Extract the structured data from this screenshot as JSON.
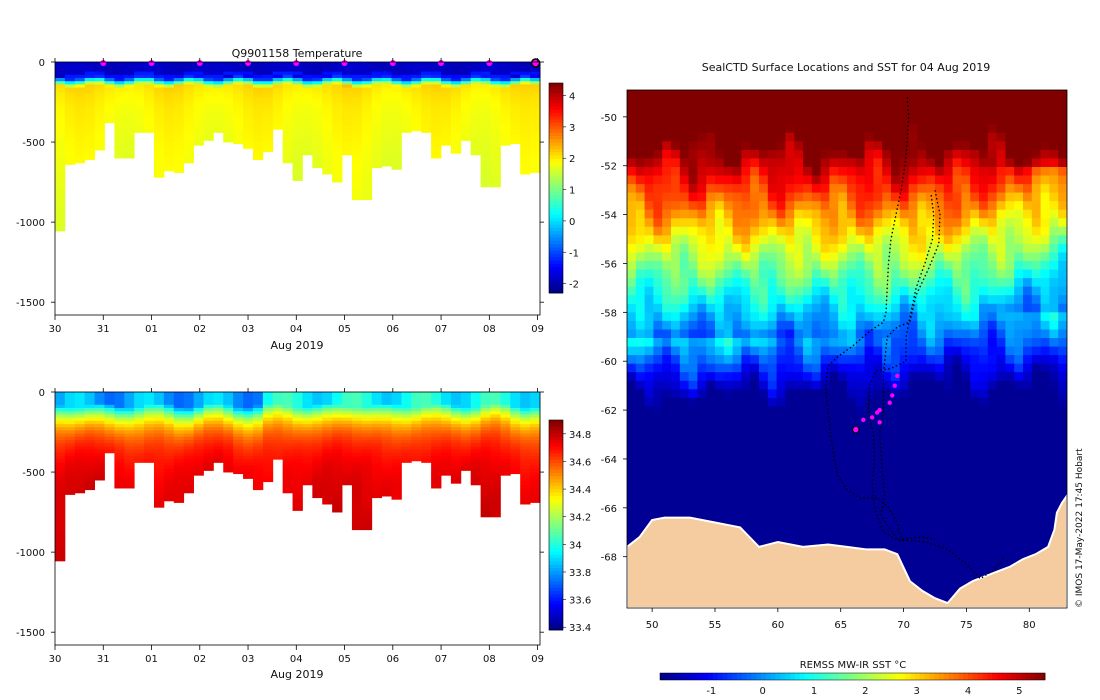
{
  "chart_data": [
    {
      "id": "temperature-section",
      "type": "heatmap",
      "title": "Q9901158  Temperature",
      "xlabel": "Aug 2019",
      "ylabel": "",
      "x_tick_labels": [
        "30",
        "31",
        "01",
        "02",
        "03",
        "04",
        "05",
        "06",
        "07",
        "08",
        "09"
      ],
      "x_tick_days": [
        0,
        1,
        2,
        3,
        4,
        5,
        6,
        7,
        8,
        9,
        10
      ],
      "xlim_days": [
        0,
        10.05
      ],
      "ylim": [
        -1580,
        0
      ],
      "y_ticks": [
        0,
        -500,
        -1000,
        -1500
      ],
      "colorbar": {
        "min": -2.3,
        "max": 4.4,
        "ticks": [
          4,
          3,
          2,
          1,
          0,
          -1,
          -2
        ],
        "colormap": "jet"
      },
      "profile_max_depths": [
        1055,
        640,
        630,
        610,
        550,
        380,
        600,
        600,
        440,
        440,
        720,
        680,
        690,
        630,
        520,
        490,
        440,
        500,
        510,
        540,
        610,
        560,
        420,
        630,
        740,
        580,
        660,
        700,
        750,
        580,
        860,
        860,
        660,
        650,
        670,
        440,
        430,
        440,
        600,
        520,
        570,
        490,
        580,
        780,
        780,
        520,
        510,
        700,
        690
      ],
      "cast_markers_days": [
        1,
        2,
        3,
        4,
        5,
        6,
        7,
        8,
        9
      ],
      "latest_marker_day": 10
    },
    {
      "id": "salinity-section",
      "type": "heatmap",
      "title": "",
      "xlabel": "Aug 2019",
      "ylabel": "",
      "x_tick_labels": [
        "30",
        "31",
        "01",
        "02",
        "03",
        "04",
        "05",
        "06",
        "07",
        "08",
        "09"
      ],
      "x_tick_days": [
        0,
        1,
        2,
        3,
        4,
        5,
        6,
        7,
        8,
        9,
        10
      ],
      "xlim_days": [
        0,
        10.05
      ],
      "ylim": [
        -1580,
        0
      ],
      "y_ticks": [
        0,
        -500,
        -1000,
        -1500
      ],
      "colorbar": {
        "min": 33.38,
        "max": 34.9,
        "ticks": [
          34.8,
          34.6,
          34.4,
          34.2,
          34,
          33.8,
          33.6,
          33.4
        ],
        "colormap": "jet"
      },
      "profile_max_depths": [
        1055,
        640,
        630,
        610,
        550,
        380,
        600,
        600,
        440,
        440,
        720,
        680,
        690,
        630,
        520,
        490,
        440,
        500,
        510,
        540,
        610,
        560,
        420,
        630,
        740,
        580,
        660,
        700,
        750,
        580,
        860,
        860,
        660,
        650,
        670,
        440,
        430,
        440,
        600,
        520,
        570,
        490,
        580,
        780,
        780,
        520,
        510,
        700,
        690
      ]
    },
    {
      "id": "sst-map",
      "type": "heatmap",
      "title": "SealCTD Surface Locations and SST for 04 Aug 2019",
      "xlabel": "",
      "ylabel": "",
      "xlim": [
        48,
        83
      ],
      "ylim": [
        -70.1,
        -48.9
      ],
      "x_ticks": [
        50,
        55,
        60,
        65,
        70,
        75,
        80
      ],
      "y_ticks": [
        -50,
        -52,
        -54,
        -56,
        -58,
        -60,
        -62,
        -64,
        -66,
        -68
      ],
      "colorbar": {
        "label": "REMSS MW-IR SST °C",
        "min": -2,
        "max": 5.5,
        "ticks": [
          -1,
          0,
          1,
          2,
          3,
          4,
          5
        ],
        "colormap": "jet"
      },
      "track_points": [
        [
          70.3,
          -49.2
        ],
        [
          70.4,
          -50
        ],
        [
          70.3,
          -51
        ],
        [
          70.1,
          -52
        ],
        [
          69.8,
          -53
        ],
        [
          69.4,
          -54
        ],
        [
          69.0,
          -55
        ],
        [
          68.8,
          -56
        ],
        [
          68.7,
          -57
        ],
        [
          68.6,
          -58
        ],
        [
          68.4,
          -58.4
        ],
        [
          67.5,
          -58.7
        ],
        [
          66.8,
          -59
        ],
        [
          65.9,
          -59.4
        ],
        [
          64.8,
          -59.8
        ],
        [
          64.0,
          -60.2
        ],
        [
          63.8,
          -61
        ],
        [
          64.0,
          -62
        ],
        [
          64.2,
          -63
        ],
        [
          64.5,
          -64
        ],
        [
          64.8,
          -64.7
        ],
        [
          65.4,
          -65.2
        ],
        [
          66.5,
          -65.6
        ],
        [
          68.0,
          -65.6
        ],
        [
          68.8,
          -66
        ],
        [
          69.5,
          -66.6
        ],
        [
          69.8,
          -67.2
        ],
        [
          70.0,
          -67.4
        ]
      ],
      "track_points_b": [
        [
          72.2,
          -53.2
        ],
        [
          72.4,
          -54
        ],
        [
          72.3,
          -55
        ],
        [
          71.7,
          -56
        ],
        [
          71.0,
          -57
        ],
        [
          70.5,
          -58.2
        ],
        [
          70.2,
          -59
        ],
        [
          70.2,
          -60
        ],
        [
          69.0,
          -60.3
        ],
        [
          67.8,
          -60.4
        ],
        [
          67.3,
          -61
        ],
        [
          67.2,
          -62
        ],
        [
          67.6,
          -63
        ],
        [
          67.7,
          -64
        ],
        [
          67.5,
          -65
        ],
        [
          67.7,
          -66
        ],
        [
          68.4,
          -67
        ],
        [
          69.5,
          -67.3
        ],
        [
          71.5,
          -67.2
        ],
        [
          72.5,
          -67.3
        ]
      ],
      "track_points_c": [
        [
          72.5,
          -53.0
        ],
        [
          72.9,
          -54
        ],
        [
          72.8,
          -55.2
        ],
        [
          72.0,
          -56.2
        ],
        [
          71.0,
          -57.3
        ],
        [
          70.5,
          -58.4
        ],
        [
          69.5,
          -58.6
        ],
        [
          68.7,
          -59.0
        ],
        [
          68.4,
          -60.5
        ],
        [
          68.4,
          -62
        ],
        [
          68.1,
          -63
        ],
        [
          68.3,
          -64.5
        ],
        [
          68.5,
          -65.5
        ],
        [
          68.2,
          -66.3
        ],
        [
          69.5,
          -67.3
        ],
        [
          71.8,
          -67.4
        ],
        [
          73.5,
          -67.7
        ],
        [
          75.0,
          -68.3
        ],
        [
          76.1,
          -68.9
        ],
        [
          77.3,
          -68.5
        ],
        [
          78.0,
          -68
        ]
      ],
      "recent_positions": [
        [
          69.5,
          -60.6
        ],
        [
          69.3,
          -61.0
        ],
        [
          69.1,
          -61.4
        ],
        [
          68.9,
          -61.7
        ],
        [
          68.1,
          -62.0
        ],
        [
          67.9,
          -62.1
        ],
        [
          67.5,
          -62.3
        ],
        [
          66.8,
          -62.4
        ],
        [
          68.1,
          -62.5
        ]
      ],
      "latest_position": [
        66.2,
        -62.8
      ],
      "credit": "© IMOS 17-May-2022 17:45 Hobart"
    }
  ],
  "colors": {
    "marker": "#ff00ff",
    "land": "#f5cba0",
    "track": "#000000"
  }
}
